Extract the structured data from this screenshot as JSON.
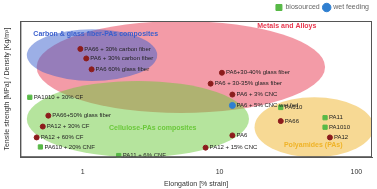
{
  "chart_data": {
    "type": "scatter",
    "x_label": "Elongation [% strain]",
    "y_label": "Tensile strength [MPa] / Density [Kg/m³]",
    "log": "x",
    "xlim": [
      0.35,
      130
    ],
    "xticks": [
      1,
      10,
      100
    ],
    "ylim": [
      0,
      0.2
    ],
    "grid": false,
    "tick_labels": "x",
    "legend": "top-right",
    "color": "#8c1c1c",
    "regions": [
      {
        "name": "Metals and Alloys",
        "color": "#e8384f",
        "x": [
          0.46,
          59
        ],
        "y": [
          0.065,
          0.2
        ]
      },
      {
        "name": "Cellulose-PAs composites",
        "color": "#6cc93c",
        "x": [
          0.39,
          16.4
        ],
        "y": [
          0,
          0.112
        ]
      },
      {
        "name": "Polyamides (PAs)",
        "color": "#f0b429",
        "x": [
          18,
          134
        ],
        "y": [
          0,
          0.088
        ]
      },
      {
        "name": "Carbon & glass fiber-PAs composites",
        "color": "#3a5fcd",
        "x": [
          0.39,
          3.5
        ],
        "y": [
          0.112,
          0.188
        ]
      }
    ],
    "series": [
      {
        "name": "biosourced",
        "color": "#58b947",
        "marker": "rect",
        "points": [
          {
            "label": "PA1010 + 30% CF",
            "x": 0.41,
            "y": 0.088
          },
          {
            "label": "PA610 + 20% CNF",
            "x": 0.49,
            "y": 0.015
          },
          {
            "label": "PA11 + 6% CNF",
            "x": 1.83,
            "y": 0.0024
          },
          {
            "label": "PA610",
            "x": 28,
            "y": 0.073
          },
          {
            "label": "PA11",
            "x": 59,
            "y": 0.058
          },
          {
            "label": "PA1010",
            "x": 59,
            "y": 0.044
          }
        ]
      },
      {
        "name": "wet feeding",
        "color": "#2f7fd0",
        "marker": "circle",
        "points": [
          {
            "label": "PA6 + 5% CNC wet fed",
            "x": 12.4,
            "y": 0.076
          }
        ]
      }
    ],
    "points": [
      {
        "label": "PA66 + 30% carbon fiber",
        "x": 0.96,
        "y": 0.159
      },
      {
        "label": "PA6 + 30% carbon fiber",
        "x": 1.06,
        "y": 0.145
      },
      {
        "label": "PA6 60% glass fiber",
        "x": 1.16,
        "y": 0.129
      },
      {
        "label": "PA6+30-40% glass fiber",
        "x": 10.4,
        "y": 0.124
      },
      {
        "label": "PA6 + 30-35% glass fiber",
        "x": 8.6,
        "y": 0.108
      },
      {
        "label": "PA6 + 3% CNC",
        "x": 12.4,
        "y": 0.092
      },
      {
        "label": "PA66+50% glass fiber",
        "x": 0.56,
        "y": 0.061
      },
      {
        "label": "PA12 + 30% CF",
        "x": 0.51,
        "y": 0.045
      },
      {
        "label": "PA12 + 60% CF",
        "x": 0.46,
        "y": 0.029
      },
      {
        "label": "PA12 + 15% CNC",
        "x": 7.9,
        "y": 0.014
      },
      {
        "label": "PA6",
        "x": 12.4,
        "y": 0.032
      },
      {
        "label": "PA66",
        "x": 28,
        "y": 0.053
      },
      {
        "label": "PA12",
        "x": 64,
        "y": 0.029
      }
    ]
  }
}
